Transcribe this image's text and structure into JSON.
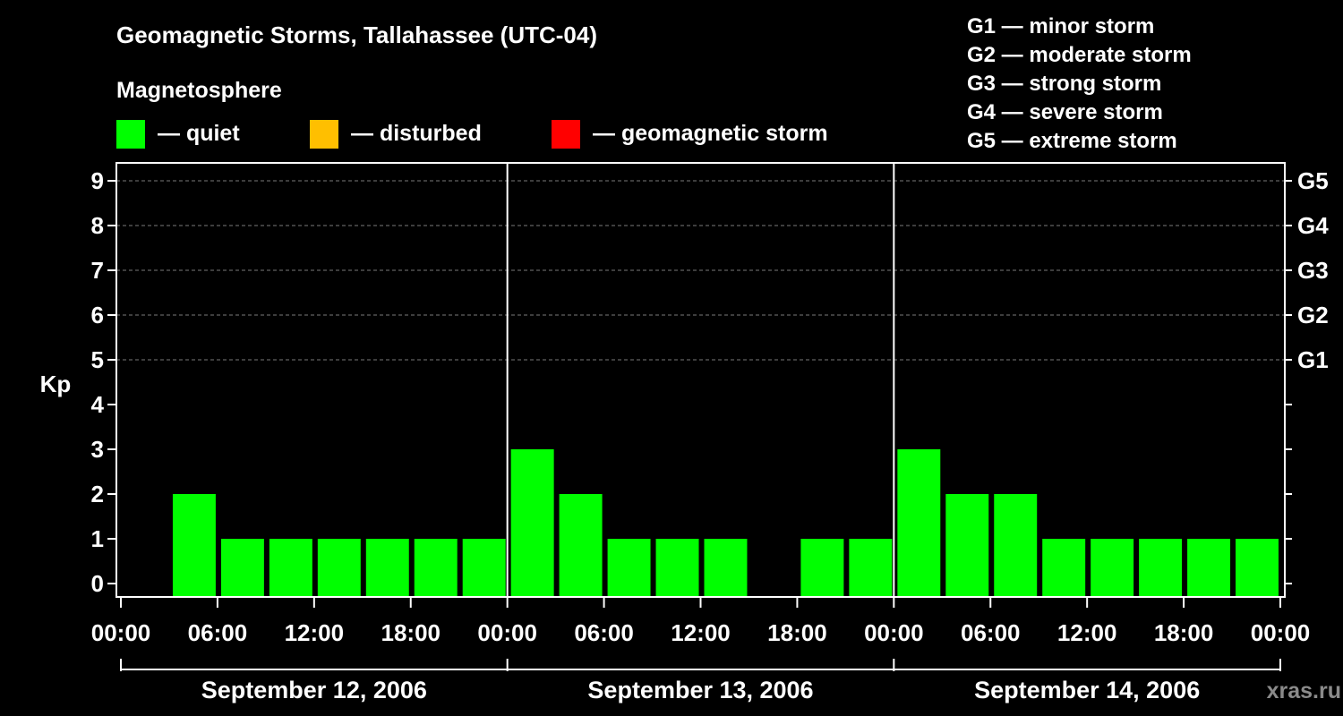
{
  "chart_data": {
    "type": "bar",
    "title": "Geomagnetic Storms, Tallahassee (UTC-04)",
    "ylabel": "Kp",
    "ylim": [
      0,
      9
    ],
    "yticks": [
      "0",
      "1",
      "2",
      "3",
      "4",
      "5",
      "6",
      "7",
      "8",
      "9"
    ],
    "right_ticks": [
      {
        "kp": 5,
        "label": "G1"
      },
      {
        "kp": 6,
        "label": "G2"
      },
      {
        "kp": 7,
        "label": "G3"
      },
      {
        "kp": 8,
        "label": "G4"
      },
      {
        "kp": 9,
        "label": "G5"
      }
    ],
    "xtick_labels": [
      "00:00",
      "06:00",
      "12:00",
      "18:00",
      "00:00",
      "06:00",
      "12:00",
      "18:00",
      "00:00",
      "06:00",
      "12:00",
      "18:00",
      "00:00"
    ],
    "days": [
      "September 12, 2006",
      "September 13, 2006",
      "September 14, 2006"
    ],
    "interval_hours": 3,
    "values": [
      0,
      2,
      1,
      1,
      1,
      1,
      1,
      1,
      3,
      2,
      1,
      1,
      1,
      0,
      1,
      1,
      3,
      2,
      2,
      1,
      1,
      1,
      1,
      1
    ],
    "grid": "dashed at Kp 5-9",
    "colors": {
      "quiet": "#00ff00",
      "disturbed": "#ffbf00",
      "storm": "#ff0000"
    }
  },
  "legend": {
    "heading": "Magnetosphere",
    "items": [
      {
        "label": "— quiet",
        "color": "#00ff00"
      },
      {
        "label": "— disturbed",
        "color": "#ffbf00"
      },
      {
        "label": "— geomagnetic storm",
        "color": "#ff0000"
      }
    ]
  },
  "scale_legend": [
    "G1 — minor storm",
    "G2 — moderate storm",
    "G3 — strong storm",
    "G4 — severe storm",
    "G5 — extreme storm"
  ],
  "watermark": "xras.ru"
}
